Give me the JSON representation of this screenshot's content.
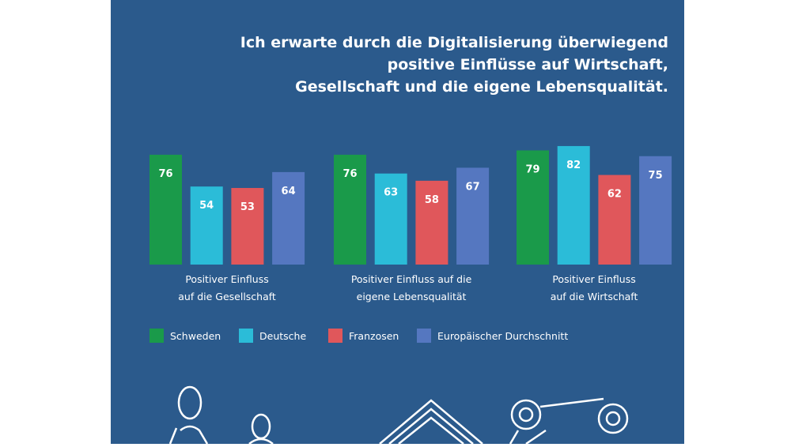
{
  "chart_data": {
    "type": "bar",
    "title": [
      "Ich erwarte durch die Digitalisierung überwiegend",
      "positive Einflüsse auf Wirtschaft,",
      "Gesellschaft und die eigene Lebensqualität."
    ],
    "categories": [
      [
        "Positiver Einfluss",
        "auf die Gesellschaft"
      ],
      [
        "Positiver Einfluss auf die",
        "eigene Lebensqualität"
      ],
      [
        "Positiver Einfluss",
        "auf die Wirtschaft"
      ]
    ],
    "series": [
      {
        "name": "Schweden",
        "color": "#1a9a4a",
        "values": [
          76,
          76,
          79
        ]
      },
      {
        "name": "Deutsche",
        "color": "#2bbcd8",
        "values": [
          54,
          63,
          82
        ]
      },
      {
        "name": "Franzosen",
        "color": "#e0575b",
        "values": [
          53,
          58,
          62
        ]
      },
      {
        "name": "Europäischer Durchschnitt",
        "color": "#5577c0",
        "values": [
          64,
          67,
          75
        ]
      }
    ]
  }
}
